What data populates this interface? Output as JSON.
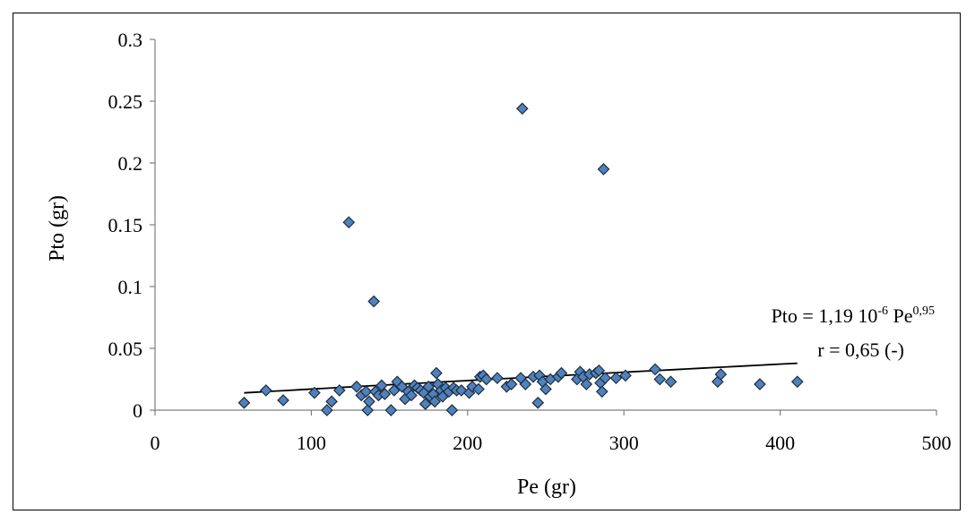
{
  "chart_data": {
    "type": "scatter",
    "title": "",
    "xlabel": "Pe (gr)",
    "ylabel": "Pto (gr)",
    "xlim": [
      0,
      500
    ],
    "ylim": [
      0,
      0.3
    ],
    "xticks": [
      "0",
      "100",
      "200",
      "300",
      "400",
      "500"
    ],
    "yticks": [
      "0",
      "0.05",
      "0.1",
      "0.15",
      "0.2",
      "0.25",
      "0.3"
    ],
    "grid": false,
    "legend": "none",
    "marker_color": "#4f81bd",
    "marker_edge_color": "#1f2d3d",
    "trendline": {
      "type": "power",
      "a": 1.19e-06,
      "b": 0.95,
      "x_range": [
        57,
        411
      ],
      "label_line1_prefix": "Pto = 1,19  10",
      "label_line1_exp1": "-6",
      "label_line1_mid": " Pe",
      "label_line1_exp2": "0,95",
      "label_line2": "r = 0,65  (-)"
    },
    "points": [
      [
        57,
        0.006
      ],
      [
        71,
        0.016
      ],
      [
        82,
        0.008
      ],
      [
        102,
        0.014
      ],
      [
        110,
        0.0
      ],
      [
        113,
        0.007
      ],
      [
        118,
        0.016
      ],
      [
        124,
        0.152
      ],
      [
        129,
        0.019
      ],
      [
        132,
        0.012
      ],
      [
        135,
        0.015
      ],
      [
        136,
        0.0
      ],
      [
        137,
        0.007
      ],
      [
        140,
        0.088
      ],
      [
        141,
        0.015
      ],
      [
        143,
        0.012
      ],
      [
        145,
        0.02
      ],
      [
        147,
        0.013
      ],
      [
        151,
        0.0
      ],
      [
        153,
        0.016
      ],
      [
        155,
        0.023
      ],
      [
        158,
        0.019
      ],
      [
        160,
        0.009
      ],
      [
        162,
        0.015
      ],
      [
        164,
        0.012
      ],
      [
        166,
        0.02
      ],
      [
        168,
        0.018
      ],
      [
        170,
        0.016
      ],
      [
        172,
        0.014
      ],
      [
        173,
        0.005
      ],
      [
        175,
        0.019
      ],
      [
        176,
        0.011
      ],
      [
        178,
        0.013
      ],
      [
        179,
        0.007
      ],
      [
        180,
        0.03
      ],
      [
        181,
        0.021
      ],
      [
        183,
        0.016
      ],
      [
        184,
        0.011
      ],
      [
        186,
        0.018
      ],
      [
        188,
        0.015
      ],
      [
        190,
        0.0
      ],
      [
        191,
        0.018
      ],
      [
        193,
        0.016
      ],
      [
        196,
        0.016
      ],
      [
        201,
        0.014
      ],
      [
        203,
        0.019
      ],
      [
        207,
        0.017
      ],
      [
        208,
        0.027
      ],
      [
        210,
        0.028
      ],
      [
        212,
        0.025
      ],
      [
        219,
        0.026
      ],
      [
        225,
        0.019
      ],
      [
        228,
        0.021
      ],
      [
        234,
        0.026
      ],
      [
        235,
        0.244
      ],
      [
        237,
        0.021
      ],
      [
        242,
        0.027
      ],
      [
        245,
        0.006
      ],
      [
        246,
        0.028
      ],
      [
        248,
        0.023
      ],
      [
        250,
        0.017
      ],
      [
        253,
        0.025
      ],
      [
        258,
        0.027
      ],
      [
        260,
        0.03
      ],
      [
        270,
        0.025
      ],
      [
        272,
        0.031
      ],
      [
        274,
        0.027
      ],
      [
        276,
        0.021
      ],
      [
        278,
        0.029
      ],
      [
        282,
        0.03
      ],
      [
        284,
        0.032
      ],
      [
        285,
        0.022
      ],
      [
        286,
        0.015
      ],
      [
        287,
        0.195
      ],
      [
        288,
        0.026
      ],
      [
        295,
        0.026
      ],
      [
        301,
        0.028
      ],
      [
        320,
        0.033
      ],
      [
        323,
        0.025
      ],
      [
        330,
        0.023
      ],
      [
        360,
        0.023
      ],
      [
        362,
        0.029
      ],
      [
        387,
        0.021
      ],
      [
        411,
        0.023
      ]
    ]
  }
}
